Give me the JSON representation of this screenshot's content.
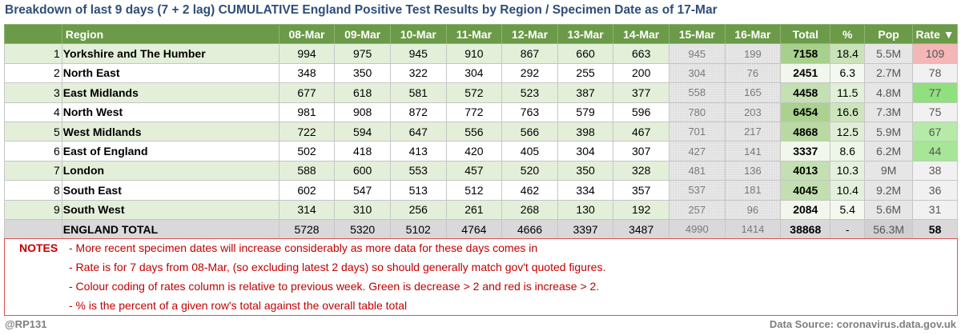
{
  "title": "Breakdown of last 9 days (7 + 2 lag) CUMULATIVE England Positive Test Results by Region / Specimen Date as of 17-Mar",
  "headers": {
    "region": "Region",
    "d1": "08-Mar",
    "d2": "09-Mar",
    "d3": "10-Mar",
    "d4": "11-Mar",
    "d5": "12-Mar",
    "d6": "13-Mar",
    "d7": "14-Mar",
    "d8": "15-Mar",
    "d9": "16-Mar",
    "total": "Total",
    "pct": "%",
    "pop": "Pop",
    "rate": "Rate ▼"
  },
  "rows": [
    {
      "rank": "1",
      "region": "Yorkshire and The Humber",
      "v": [
        "994",
        "975",
        "945",
        "910",
        "867",
        "660",
        "663",
        "945",
        "199"
      ],
      "total": "7158",
      "pct": "18.4",
      "pop": "5.5M",
      "rate": "109"
    },
    {
      "rank": "2",
      "region": "North East",
      "v": [
        "348",
        "350",
        "322",
        "304",
        "292",
        "255",
        "200",
        "304",
        "76"
      ],
      "total": "2451",
      "pct": "6.3",
      "pop": "2.7M",
      "rate": "78"
    },
    {
      "rank": "3",
      "region": "East Midlands",
      "v": [
        "677",
        "618",
        "581",
        "572",
        "523",
        "387",
        "377",
        "558",
        "165"
      ],
      "total": "4458",
      "pct": "11.5",
      "pop": "4.8M",
      "rate": "77"
    },
    {
      "rank": "4",
      "region": "North West",
      "v": [
        "981",
        "908",
        "872",
        "772",
        "763",
        "579",
        "596",
        "780",
        "203"
      ],
      "total": "6454",
      "pct": "16.6",
      "pop": "7.3M",
      "rate": "75"
    },
    {
      "rank": "5",
      "region": "West Midlands",
      "v": [
        "722",
        "594",
        "647",
        "556",
        "566",
        "398",
        "467",
        "701",
        "217"
      ],
      "total": "4868",
      "pct": "12.5",
      "pop": "5.9M",
      "rate": "67"
    },
    {
      "rank": "6",
      "region": "East of England",
      "v": [
        "502",
        "418",
        "413",
        "420",
        "405",
        "304",
        "307",
        "427",
        "141"
      ],
      "total": "3337",
      "pct": "8.6",
      "pop": "6.2M",
      "rate": "44"
    },
    {
      "rank": "7",
      "region": "London",
      "v": [
        "588",
        "600",
        "553",
        "457",
        "520",
        "350",
        "328",
        "481",
        "136"
      ],
      "total": "4013",
      "pct": "10.3",
      "pop": "9M",
      "rate": "38"
    },
    {
      "rank": "8",
      "region": "South East",
      "v": [
        "602",
        "547",
        "513",
        "512",
        "462",
        "334",
        "357",
        "537",
        "181"
      ],
      "total": "4045",
      "pct": "10.4",
      "pop": "9.2M",
      "rate": "36"
    },
    {
      "rank": "9",
      "region": "South West",
      "v": [
        "314",
        "310",
        "256",
        "261",
        "268",
        "130",
        "192",
        "257",
        "96"
      ],
      "total": "2084",
      "pct": "5.4",
      "pop": "5.6M",
      "rate": "31"
    }
  ],
  "england": {
    "label": "ENGLAND TOTAL",
    "v": [
      "5728",
      "5320",
      "5102",
      "4764",
      "4666",
      "3397",
      "3487",
      "4990",
      "1414"
    ],
    "total": "38868",
    "pct": "-",
    "pop": "56.3M",
    "rate": "58"
  },
  "colors": {
    "header_bg": "#6b9a48",
    "row_alt": "#e3efd9",
    "title": "#2e4e7a",
    "notes": "#c00000",
    "total_cells": [
      "#a8d08d",
      "#f1f7ec",
      "#c5e0b3",
      "#abd18f",
      "#b9d9a2",
      "#f1f7ec",
      "#c4dfb1",
      "#c3dfb0",
      "#f1f7ec"
    ],
    "pct_cells": [
      "#c9e2b8",
      "#f4f9f0",
      "#e2efd9",
      "#cde4bd",
      "#e0eed7",
      "#eef6e8",
      "#e5f1dd",
      "#e4f0dc",
      "#f4f9f0"
    ],
    "rate_cells": [
      "#f4b6b6",
      "#f1f1f1",
      "#90e080",
      "#f1f1f1",
      "#b6eaa8",
      "#a6e696",
      "#f1f1f1",
      "#f1f1f1",
      "#f1f1f1"
    ]
  },
  "notes": {
    "label": "NOTES",
    "lines": [
      "- More recent specimen dates will increase considerably as more data for these days comes in",
      "- Rate is for 7 days from 08-Mar, (so excluding latest 2 days) so should generally match gov't quoted figures.",
      "- Colour coding of rates column is relative to previous week. Green is decrease > 2 and red is increase > 2.",
      "- % is the percent of a given row's total against the overall table total"
    ]
  },
  "footer": {
    "author": "@RP131",
    "source": "Data Source: coronavirus.data.gov.uk"
  }
}
